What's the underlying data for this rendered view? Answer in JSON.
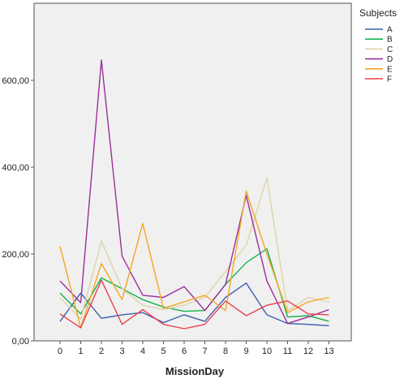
{
  "chart_data": {
    "type": "line",
    "title": "",
    "xlabel": "MissionDay",
    "ylabel": "",
    "categories": [
      "0",
      "1",
      "2",
      "3",
      "4",
      "5",
      "6",
      "7",
      "8",
      "9",
      "10",
      "11",
      "12",
      "13"
    ],
    "ylim": [
      0,
      760
    ],
    "y_ticks": [
      "0,00",
      "200,00",
      "400,00",
      "600,00"
    ],
    "y_tick_values": [
      0,
      200,
      400,
      600
    ],
    "grid": false,
    "legend": {
      "title": "Subjects",
      "position": "right"
    },
    "series": [
      {
        "name": "A",
        "color": "#3b5fb0",
        "values": [
          45,
          110,
          52,
          60,
          65,
          42,
          60,
          45,
          100,
          133,
          60,
          40,
          38,
          35
        ]
      },
      {
        "name": "B",
        "color": "#16b34a",
        "values": [
          110,
          62,
          145,
          120,
          95,
          78,
          68,
          70,
          130,
          180,
          212,
          55,
          58,
          45
        ]
      },
      {
        "name": "C",
        "color": "#dcd4a8",
        "values": [
          100,
          50,
          230,
          120,
          82,
          72,
          82,
          100,
          160,
          220,
          375,
          70,
          100,
          90
        ]
      },
      {
        "name": "D",
        "color": "#9a2f9a",
        "values": [
          138,
          88,
          647,
          195,
          105,
          100,
          125,
          70,
          130,
          335,
          138,
          40,
          55,
          72
        ]
      },
      {
        "name": "E",
        "color": "#f5a623",
        "values": [
          218,
          30,
          178,
          95,
          270,
          75,
          90,
          105,
          70,
          345,
          200,
          65,
          90,
          100
        ]
      },
      {
        "name": "F",
        "color": "#e8404d",
        "values": [
          62,
          30,
          140,
          38,
          72,
          38,
          28,
          38,
          92,
          58,
          82,
          92,
          62,
          60
        ]
      }
    ]
  }
}
